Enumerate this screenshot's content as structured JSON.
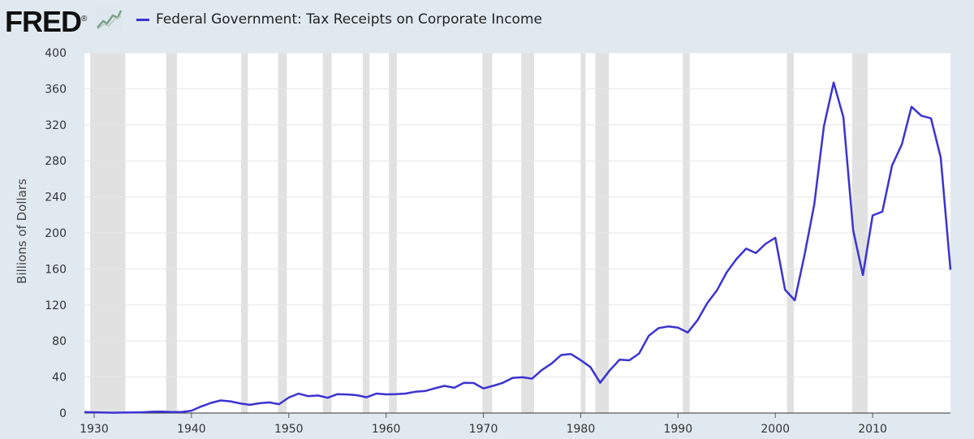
{
  "header": {
    "logo_text": "FRED",
    "logo_mark": "®",
    "logo_icon": "line-chart-icon"
  },
  "colors": {
    "series": "#3b33d1",
    "recession": "#e1e1e1",
    "grid": "#e6e6e6",
    "background": "#e1e9f0",
    "plot": "#ffffff"
  },
  "chart_data": {
    "type": "line",
    "ylabel": "Billions of Dollars",
    "ylim": [
      0,
      400
    ],
    "xlim": [
      1929,
      2018
    ],
    "yticks": [
      0,
      40,
      80,
      120,
      160,
      200,
      240,
      280,
      320,
      360,
      400
    ],
    "xticks": [
      1930,
      1940,
      1950,
      1960,
      1970,
      1980,
      1990,
      2000,
      2010
    ],
    "grid": true,
    "legend_position": "top-left",
    "recessions": [
      [
        1929.6,
        1933.2
      ],
      [
        1937.4,
        1938.5
      ],
      [
        1945.1,
        1945.8
      ],
      [
        1948.9,
        1949.8
      ],
      [
        1953.5,
        1954.4
      ],
      [
        1957.6,
        1958.3
      ],
      [
        1960.3,
        1961.1
      ],
      [
        1969.9,
        1970.9
      ],
      [
        1973.9,
        1975.2
      ],
      [
        1980.0,
        1980.5
      ],
      [
        1981.5,
        1982.9
      ],
      [
        1990.5,
        1991.2
      ],
      [
        2001.2,
        2001.9
      ],
      [
        2007.9,
        2009.5
      ]
    ],
    "series": [
      {
        "name": "Federal Government: Tax Receipts on Corporate Income",
        "x": [
          1929,
          1930,
          1931,
          1932,
          1933,
          1934,
          1935,
          1936,
          1937,
          1938,
          1939,
          1940,
          1941,
          1942,
          1943,
          1944,
          1945,
          1946,
          1947,
          1948,
          1949,
          1950,
          1951,
          1952,
          1953,
          1954,
          1955,
          1956,
          1957,
          1958,
          1959,
          1960,
          1961,
          1962,
          1963,
          1964,
          1965,
          1966,
          1967,
          1968,
          1969,
          1970,
          1971,
          1972,
          1973,
          1974,
          1975,
          1976,
          1977,
          1978,
          1979,
          1980,
          1981,
          1982,
          1983,
          1984,
          1985,
          1986,
          1987,
          1988,
          1989,
          1990,
          1991,
          1992,
          1993,
          1994,
          1995,
          1996,
          1997,
          1998,
          1999,
          2000,
          2001,
          2002,
          2003,
          2004,
          2005,
          2006,
          2007,
          2008,
          2009,
          2010,
          2011,
          2012,
          2013,
          2014,
          2015,
          2016,
          2017,
          2018
        ],
        "values": [
          1.2,
          0.8,
          0.5,
          0.4,
          0.5,
          0.7,
          0.9,
          1.4,
          1.6,
          1.1,
          1.2,
          2.6,
          7.3,
          11.3,
          14.0,
          13.0,
          10.7,
          9.1,
          10.9,
          11.8,
          9.8,
          17.2,
          21.5,
          18.7,
          19.5,
          16.9,
          21.0,
          20.6,
          19.8,
          17.5,
          21.6,
          20.7,
          20.9,
          21.6,
          23.6,
          24.4,
          27.4,
          30.2,
          28.0,
          33.6,
          33.3,
          27.3,
          30.2,
          33.5,
          39.0,
          39.7,
          38.2,
          47.7,
          54.9,
          64.4,
          65.5,
          58.7,
          51.1,
          33.6,
          47.6,
          59.3,
          58.6,
          66.1,
          85.8,
          94.2,
          96.1,
          94.8,
          89.4,
          103.0,
          122.0,
          136.2,
          156.2,
          170.8,
          182.5,
          177.6,
          187.8,
          194.6,
          136.9,
          125.1,
          175.5,
          231.6,
          318.5,
          366.9,
          328.4,
          203.0,
          153.2,
          219.4,
          223.6,
          275.0,
          298.2,
          340.0,
          330.1,
          327.2,
          283.7,
          159.0
        ]
      }
    ]
  }
}
